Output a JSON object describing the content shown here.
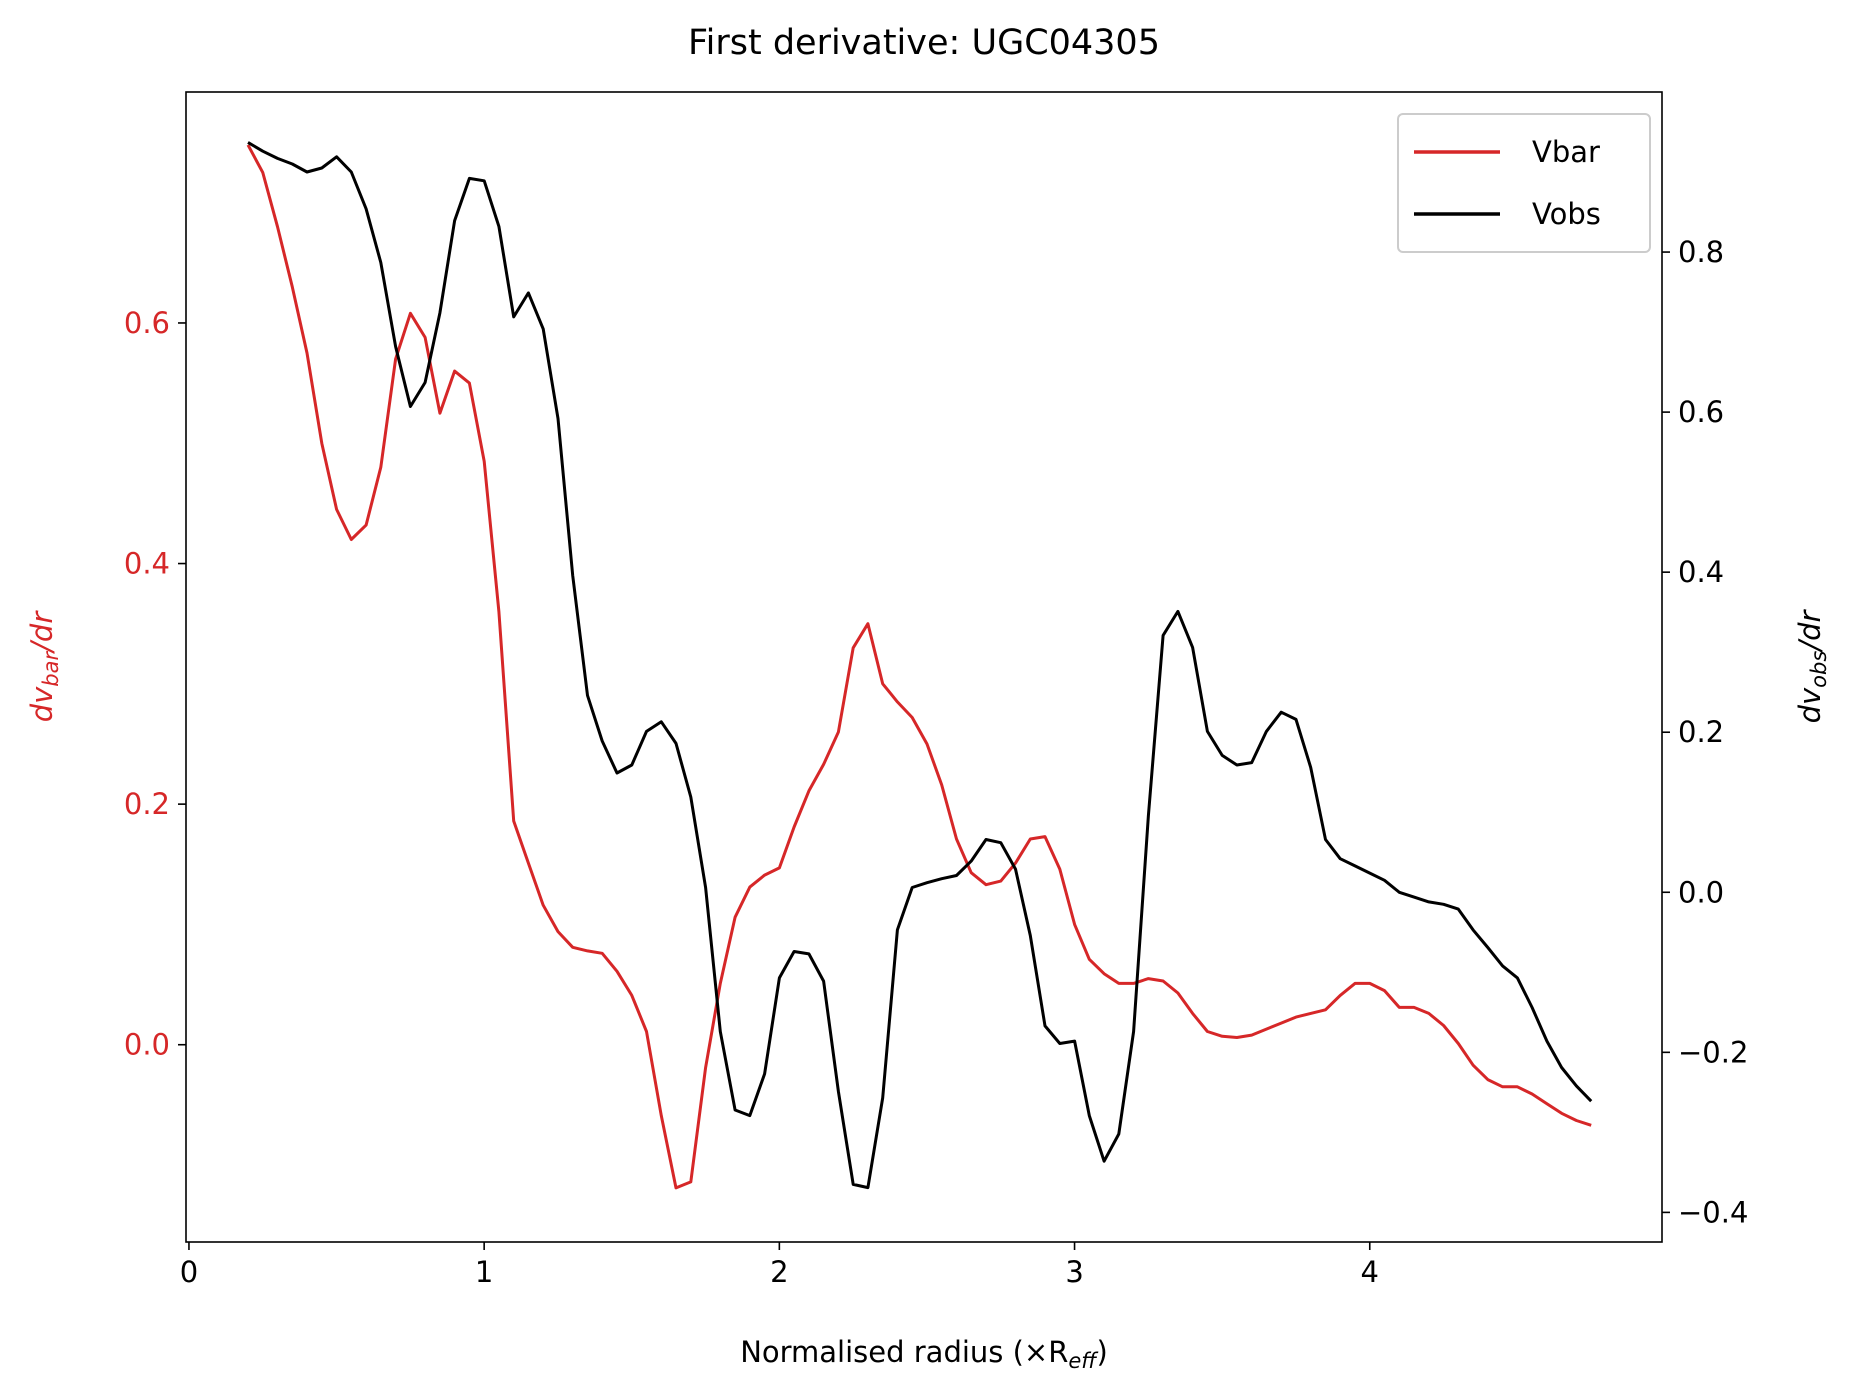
{
  "chart_data": {
    "type": "line",
    "title": "First derivative: UGC04305",
    "xlabel": [
      "Normalised radius (×R",
      "eff",
      ")"
    ],
    "ylabel": [
      "dv",
      "bar",
      "/dr"
    ],
    "y2label": [
      "dv",
      "obs",
      "/dr"
    ],
    "legend": "upper right",
    "xlim": [
      -0.01,
      4.99
    ],
    "ylim": [
      -0.164,
      0.792
    ],
    "y2lim": [
      -0.437,
      1.0
    ],
    "xticks": [
      0,
      1,
      2,
      3,
      4
    ],
    "yticks": [
      {
        "value": 0,
        "label": "0.0"
      },
      0.2,
      0.4,
      0.6
    ],
    "y2ticks": [
      {
        "value": -0.4,
        "label": "−0.4"
      },
      {
        "value": -0.2,
        "label": "−0.2"
      },
      {
        "value": 0,
        "label": "0.0"
      },
      0.2,
      0.4,
      0.6,
      0.8
    ],
    "x": [
      0.2,
      0.25,
      0.3,
      0.35,
      0.4,
      0.45,
      0.5,
      0.55,
      0.6,
      0.65,
      0.7,
      0.75,
      0.8,
      0.85,
      0.9,
      0.95,
      1.0,
      1.05,
      1.1,
      1.15,
      1.2,
      1.25,
      1.3,
      1.35,
      1.4,
      1.45,
      1.5,
      1.55,
      1.6,
      1.65,
      1.7,
      1.75,
      1.8,
      1.85,
      1.9,
      1.95,
      2.0,
      2.05,
      2.1,
      2.15,
      2.2,
      2.25,
      2.3,
      2.35,
      2.4,
      2.45,
      2.5,
      2.55,
      2.6,
      2.65,
      2.7,
      2.75,
      2.8,
      2.85,
      2.9,
      2.95,
      3.0,
      3.05,
      3.1,
      3.15,
      3.2,
      3.25,
      3.3,
      3.35,
      3.4,
      3.45,
      3.5,
      3.55,
      3.6,
      3.65,
      3.7,
      3.75,
      3.8,
      3.85,
      3.9,
      3.95,
      4.0,
      4.05,
      4.1,
      4.15,
      4.2,
      4.25,
      4.3,
      4.35,
      4.4,
      4.45,
      4.5,
      4.55,
      4.6,
      4.65,
      4.7,
      4.75
    ],
    "series": [
      {
        "name": "Vbar",
        "color": "#d62728",
        "axis": "y",
        "values": [
          0.748,
          0.725,
          0.68,
          0.63,
          0.575,
          0.5,
          0.445,
          0.42,
          0.432,
          0.48,
          0.57,
          0.608,
          0.588,
          0.525,
          0.56,
          0.55,
          0.485,
          0.36,
          0.186,
          0.151,
          0.116,
          0.094,
          0.081,
          0.078,
          0.076,
          0.061,
          0.041,
          0.011,
          -0.059,
          -0.119,
          -0.114,
          -0.019,
          0.051,
          0.106,
          0.131,
          0.141,
          0.147,
          0.181,
          0.211,
          0.233,
          0.26,
          0.33,
          0.35,
          0.3,
          0.285,
          0.272,
          0.25,
          0.216,
          0.171,
          0.143,
          0.133,
          0.136,
          0.151,
          0.171,
          0.173,
          0.146,
          0.1,
          0.071,
          0.059,
          0.051,
          0.051,
          0.055,
          0.053,
          0.043,
          0.026,
          0.011,
          0.007,
          0.006,
          0.008,
          0.013,
          0.018,
          0.023,
          0.026,
          0.029,
          0.041,
          0.051,
          0.051,
          0.045,
          0.031,
          0.031,
          0.026,
          0.016,
          0.001,
          -0.017,
          -0.029,
          -0.035,
          -0.035,
          -0.041,
          -0.049,
          -0.057,
          -0.063,
          -0.067
        ]
      },
      {
        "name": "Vobs",
        "color": "#000000",
        "axis": "y2",
        "values": [
          0.937,
          0.926,
          0.917,
          0.91,
          0.9,
          0.905,
          0.919,
          0.9,
          0.854,
          0.787,
          0.682,
          0.607,
          0.637,
          0.724,
          0.839,
          0.892,
          0.889,
          0.832,
          0.719,
          0.749,
          0.704,
          0.592,
          0.396,
          0.246,
          0.189,
          0.149,
          0.159,
          0.201,
          0.213,
          0.186,
          0.119,
          0.006,
          -0.174,
          -0.272,
          -0.279,
          -0.227,
          -0.107,
          -0.074,
          -0.077,
          -0.111,
          -0.249,
          -0.365,
          -0.369,
          -0.257,
          -0.047,
          0.006,
          0.012,
          0.017,
          0.021,
          0.039,
          0.066,
          0.062,
          0.029,
          -0.054,
          -0.167,
          -0.189,
          -0.186,
          -0.279,
          -0.336,
          -0.302,
          -0.174,
          0.096,
          0.321,
          0.351,
          0.306,
          0.201,
          0.171,
          0.159,
          0.162,
          0.201,
          0.225,
          0.216,
          0.156,
          0.066,
          0.042,
          0.033,
          0.024,
          0.015,
          0.0,
          -0.006,
          -0.012,
          -0.015,
          -0.021,
          -0.047,
          -0.069,
          -0.092,
          -0.107,
          -0.144,
          -0.186,
          -0.219,
          -0.242,
          -0.261
        ]
      }
    ]
  }
}
